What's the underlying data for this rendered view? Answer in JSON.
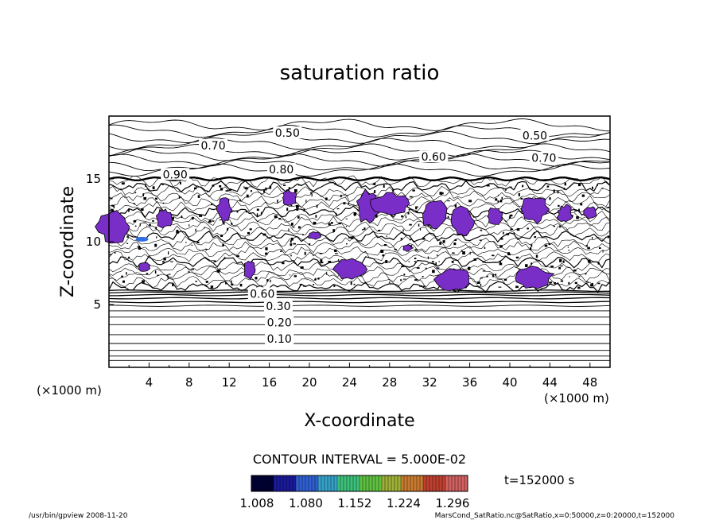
{
  "chart_data": {
    "type": "contour",
    "title": "saturation ratio",
    "xlabel": "X-coordinate",
    "ylabel": "Z-coordinate",
    "x_unit_left": "(×1000 m)",
    "x_unit_right": "(×1000 m)",
    "xlim": [
      0,
      50
    ],
    "ylim": [
      0,
      20
    ],
    "xticks": [
      4,
      8,
      12,
      16,
      20,
      24,
      28,
      32,
      36,
      40,
      44,
      48
    ],
    "yticks": [
      5,
      10,
      15
    ],
    "contour_interval_text": "CONTOUR INTERVAL = 5.000E-02",
    "time_text": "t=152000 s",
    "colorbar": {
      "tick_labels": [
        "1.008",
        "1.080",
        "1.152",
        "1.224",
        "1.296"
      ],
      "colors": [
        "#000033",
        "#1a1a9a",
        "#2f5fd0",
        "#35a0c8",
        "#3cc07a",
        "#5fc040",
        "#9fb038",
        "#c87a30",
        "#c04030",
        "#d06060"
      ]
    },
    "contour_labels": [
      {
        "text": "0.50",
        "x": 17.8,
        "y": 18.6
      },
      {
        "text": "0.50",
        "x": 42.5,
        "y": 18.4
      },
      {
        "text": "0.70",
        "x": 10.4,
        "y": 17.6
      },
      {
        "text": "0.60",
        "x": 32.4,
        "y": 16.7
      },
      {
        "text": "0.70",
        "x": 43.4,
        "y": 16.6
      },
      {
        "text": "0.80",
        "x": 17.2,
        "y": 15.7
      },
      {
        "text": "0.90",
        "x": 6.6,
        "y": 15.3
      },
      {
        "text": "0.60",
        "x": 15.3,
        "y": 5.8
      },
      {
        "text": "0.30",
        "x": 16.9,
        "y": 4.8
      },
      {
        "text": "0.20",
        "x": 17.0,
        "y": 3.5
      },
      {
        "text": "0.10",
        "x": 17.0,
        "y": 2.2
      }
    ],
    "supersaturated_color": "#7a2ec8",
    "grid": false
  },
  "footer": {
    "left": "/usr/bin/gpview  2008-11-20",
    "right": "MarsCond_SatRatio.nc@SatRatio,x=0:50000,z=0:20000,t=152000"
  }
}
